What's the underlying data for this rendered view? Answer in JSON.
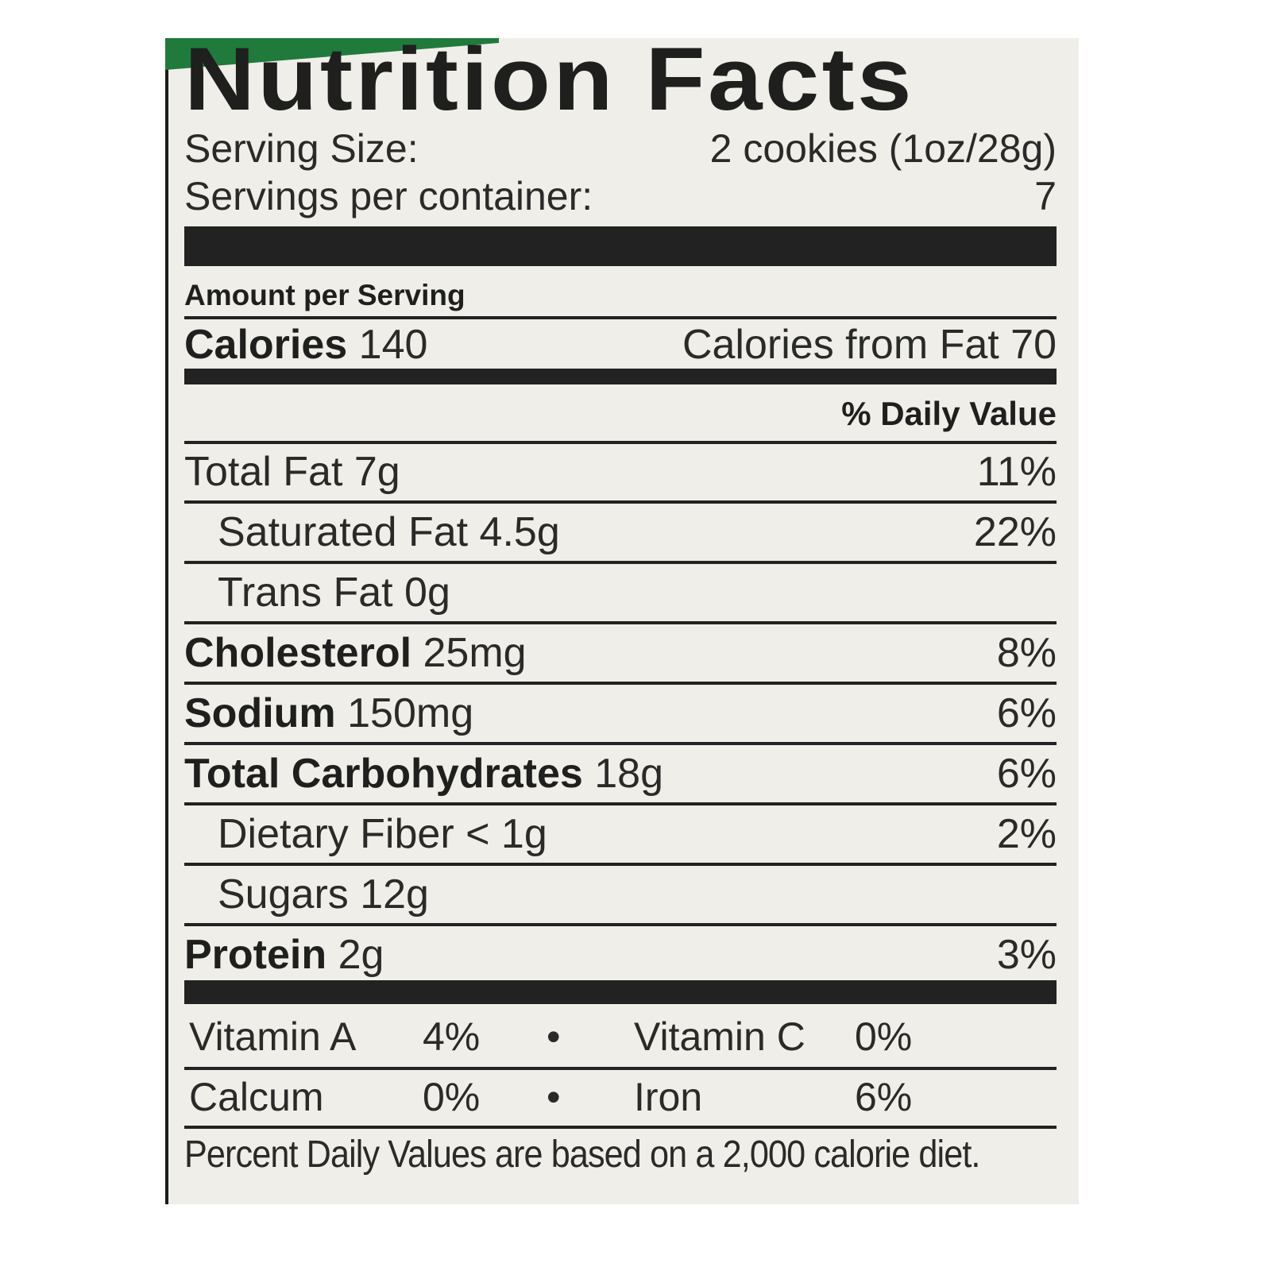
{
  "title": "Nutrition Facts",
  "serving_size": {
    "label": "Serving Size:",
    "value": "2 cookies (1oz/28g)"
  },
  "servings_per_container": {
    "label": "Servings per container:",
    "value": "7"
  },
  "amount_per_serving": "Amount per Serving",
  "calories": {
    "label": "Calories",
    "value": "140",
    "from_fat": "Calories from Fat 70"
  },
  "daily_value_header": "% Daily Value",
  "nutrients": [
    {
      "label": "Total Fat",
      "amount": "7g",
      "dv": "11%",
      "bold": false,
      "indent": false
    },
    {
      "label": "Saturated Fat",
      "amount": "4.5g",
      "dv": "22%",
      "bold": false,
      "indent": true
    },
    {
      "label": "Trans Fat",
      "amount": "0g",
      "dv": "",
      "bold": false,
      "indent": true
    },
    {
      "label": "Cholesterol",
      "amount": "25mg",
      "dv": "8%",
      "bold": true,
      "indent": false
    },
    {
      "label": "Sodium",
      "amount": "150mg",
      "dv": "6%",
      "bold": true,
      "indent": false
    },
    {
      "label": "Total Carbohydrates",
      "amount": "18g",
      "dv": "6%",
      "bold": true,
      "indent": false
    },
    {
      "label": "Dietary Fiber",
      "amount": "< 1g",
      "dv": "2%",
      "bold": false,
      "indent": true
    },
    {
      "label": "Sugars",
      "amount": "12g",
      "dv": "",
      "bold": false,
      "indent": true
    },
    {
      "label": "Protein",
      "amount": "2g",
      "dv": "3%",
      "bold": true,
      "indent": false
    }
  ],
  "vitamins": [
    {
      "a_label": "Vitamin A",
      "a_value": "4%",
      "sep": "•",
      "b_label": "Vitamin C",
      "b_value": "0%"
    },
    {
      "a_label": "Calcum",
      "a_value": "0%",
      "sep": "•",
      "b_label": "Iron",
      "b_value": "6%"
    }
  ],
  "footnote": "Percent Daily Values are based on a 2,000 calorie diet.",
  "colors": {
    "label_bg": "#efeee8",
    "ink": "#222222",
    "green_band": "#1f7a3c"
  }
}
